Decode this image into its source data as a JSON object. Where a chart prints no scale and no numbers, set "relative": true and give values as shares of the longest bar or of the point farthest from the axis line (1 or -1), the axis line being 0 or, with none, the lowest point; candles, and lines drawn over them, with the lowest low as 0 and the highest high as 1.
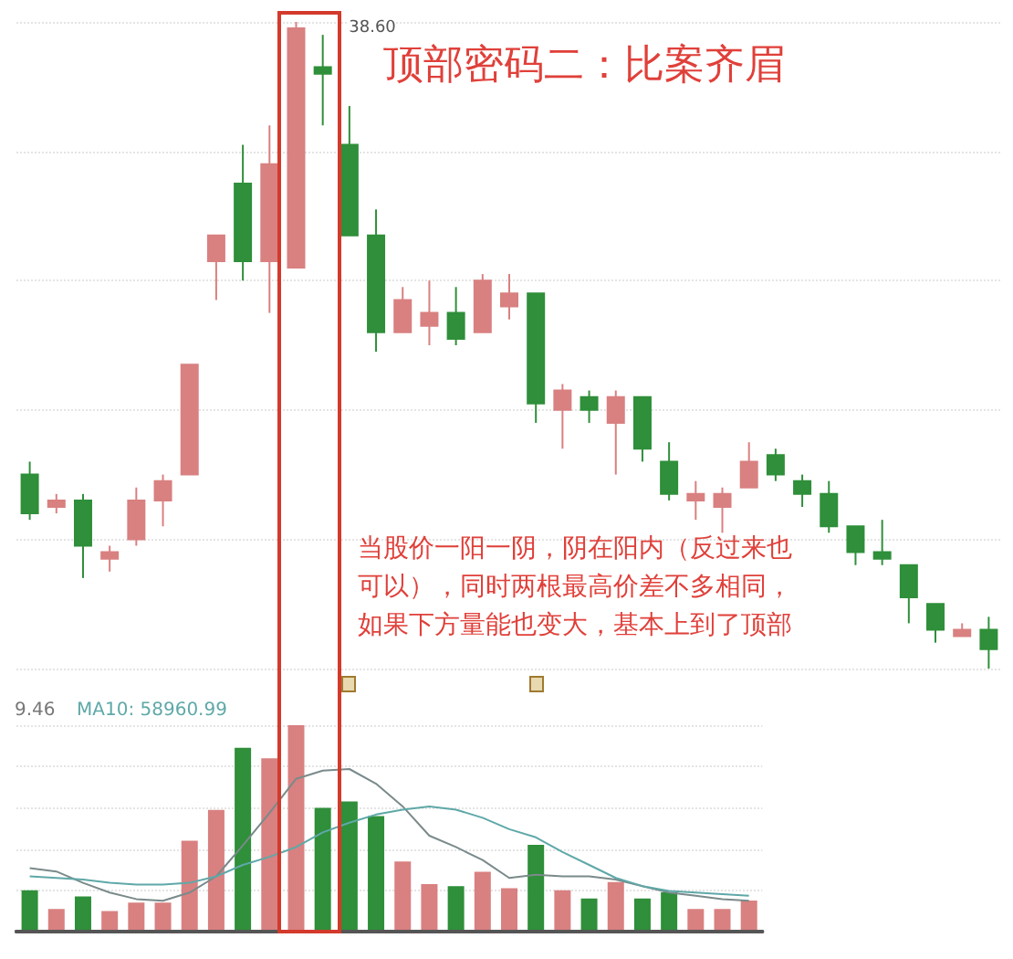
{
  "chart_data": [
    {
      "type": "candlestick",
      "title": "顶部密码二：比案齐眉",
      "relative": true,
      "grid": true,
      "categories": [
        null,
        null,
        null,
        null,
        null,
        null,
        null,
        null,
        null,
        null,
        null,
        null,
        null,
        null,
        null,
        null,
        null,
        null,
        null,
        null,
        null,
        null,
        null,
        null,
        null,
        null,
        null,
        null,
        null,
        null,
        null,
        null,
        null,
        null,
        null,
        null,
        null
      ],
      "ohlc": [
        [
          0.3,
          0.32,
          0.23,
          0.24
        ],
        [
          0.25,
          0.27,
          0.24,
          0.26
        ],
        [
          0.26,
          0.27,
          0.14,
          0.19
        ],
        [
          0.17,
          0.19,
          0.15,
          0.18
        ],
        [
          0.2,
          0.28,
          0.19,
          0.26
        ],
        [
          0.26,
          0.3,
          0.22,
          0.29
        ],
        [
          0.3,
          0.47,
          0.3,
          0.47
        ],
        [
          0.63,
          0.67,
          0.57,
          0.67
        ],
        [
          0.75,
          0.81,
          0.6,
          0.63
        ],
        [
          0.63,
          0.84,
          0.55,
          0.78
        ],
        [
          0.62,
          1,
          0.62,
          0.99
        ],
        [
          0.93,
          0.98,
          0.84,
          0.92
        ],
        [
          0.81,
          0.87,
          0.67,
          0.67
        ],
        [
          0.67,
          0.71,
          0.49,
          0.52
        ],
        [
          0.52,
          0.59,
          0.52,
          0.57
        ],
        [
          0.53,
          0.6,
          0.5,
          0.55
        ],
        [
          0.55,
          0.59,
          0.5,
          0.51
        ],
        [
          0.52,
          0.61,
          0.52,
          0.6
        ],
        [
          0.56,
          0.61,
          0.54,
          0.58
        ],
        [
          0.58,
          0.58,
          0.38,
          0.41
        ],
        [
          0.4,
          0.44,
          0.34,
          0.43
        ],
        [
          0.42,
          0.43,
          0.38,
          0.4
        ],
        [
          0.38,
          0.43,
          0.3,
          0.42
        ],
        [
          0.42,
          0.42,
          0.32,
          0.34
        ],
        [
          0.32,
          0.35,
          0.26,
          0.27
        ],
        [
          0.26,
          0.29,
          0.23,
          0.27
        ],
        [
          0.25,
          0.28,
          0.21,
          0.27
        ],
        [
          0.28,
          0.35,
          0.28,
          0.32
        ],
        [
          0.33,
          0.34,
          0.29,
          0.3
        ],
        [
          0.29,
          0.3,
          0.25,
          0.27
        ],
        [
          0.27,
          0.29,
          0.21,
          0.22
        ],
        [
          0.22,
          0.22,
          0.16,
          0.18
        ],
        [
          0.18,
          0.23,
          0.16,
          0.17
        ],
        [
          0.16,
          0.16,
          0.07,
          0.11
        ],
        [
          0.1,
          0.1,
          0.04,
          0.06
        ],
        [
          0.05,
          0.07,
          0.05,
          0.06
        ],
        [
          0.06,
          0.08,
          0,
          0.03
        ]
      ],
      "colors": [
        "#2f8f3a",
        "#d98080",
        "#2f8f3a",
        "#d98080",
        "#d98080",
        "#d98080",
        "#d98080",
        "#d98080",
        "#2f8f3a",
        "#d98080",
        "#d98080",
        "#2f8f3a",
        "#2f8f3a",
        "#2f8f3a",
        "#d98080",
        "#d98080",
        "#2f8f3a",
        "#d98080",
        "#d98080",
        "#2f8f3a",
        "#d98080",
        "#2f8f3a",
        "#d98080",
        "#2f8f3a",
        "#2f8f3a",
        "#d98080",
        "#d98080",
        "#d98080",
        "#2f8f3a",
        "#2f8f3a",
        "#2f8f3a",
        "#2f8f3a",
        "#2f8f3a",
        "#2f8f3a",
        "#2f8f3a",
        "#d98080",
        "#2f8f3a"
      ],
      "annotations": [
        "38.60",
        "当股价一阳一阴，阴在阳内（反过来也可以），同时两根最高价差不多相同，如果下方量能也变大，基本上到了顶部"
      ]
    },
    {
      "type": "bar",
      "relative": true,
      "grid": true,
      "categories": [
        null,
        null,
        null,
        null,
        null,
        null,
        null,
        null,
        null,
        null,
        null,
        null,
        null,
        null,
        null,
        null,
        null,
        null,
        null,
        null,
        null,
        null,
        null,
        null,
        null,
        null,
        null,
        null
      ],
      "values": [
        0.2,
        0.11,
        0.17,
        0.1,
        0.14,
        0.14,
        0.44,
        0.59,
        0.89,
        0.84,
        1,
        0.6,
        0.63,
        0.56,
        0.34,
        0.23,
        0.22,
        0.29,
        0.21,
        0.42,
        0.2,
        0.16,
        0.24,
        0.16,
        0.19,
        0.11,
        0.11,
        0.15
      ],
      "colors": [
        "#2f8f3a",
        "#d98080",
        "#2f8f3a",
        "#d98080",
        "#d98080",
        "#d98080",
        "#d98080",
        "#d98080",
        "#2f8f3a",
        "#d98080",
        "#d98080",
        "#2f8f3a",
        "#2f8f3a",
        "#2f8f3a",
        "#d98080",
        "#d98080",
        "#2f8f3a",
        "#d98080",
        "#d98080",
        "#2f8f3a",
        "#d98080",
        "#2f8f3a",
        "#d98080",
        "#2f8f3a",
        "#2f8f3a",
        "#d98080",
        "#d98080",
        "#d98080"
      ],
      "annotations": [
        "9.46",
        "MA10: 58960.99"
      ]
    },
    {
      "type": "line",
      "relative": true,
      "marker": "none",
      "categories": [
        null,
        null,
        null,
        null,
        null,
        null,
        null,
        null,
        null,
        null,
        null,
        null,
        null,
        null,
        null,
        null,
        null,
        null,
        null,
        null,
        null,
        null,
        null,
        null,
        null,
        null,
        null,
        null
      ],
      "series": [
        {
          "color": "#7a8a8a",
          "values": [
            0.39,
            0.37,
            0.3,
            0.24,
            0.2,
            0.19,
            0.24,
            0.34,
            0.53,
            0.73,
            0.94,
            0.99,
            1,
            0.91,
            0.77,
            0.59,
            0.52,
            0.44,
            0.33,
            0.35,
            0.34,
            0.34,
            0.32,
            0.28,
            0.24,
            0.22,
            0.2,
            0.19
          ]
        },
        {
          "color": "#5fa8a8",
          "values": [
            0.34,
            0.33,
            0.32,
            0.3,
            0.29,
            0.29,
            0.3,
            0.34,
            0.41,
            0.46,
            0.52,
            0.61,
            0.67,
            0.72,
            0.75,
            0.77,
            0.75,
            0.7,
            0.63,
            0.58,
            0.49,
            0.41,
            0.33,
            0.28,
            0.25,
            0.24,
            0.23,
            0.22
          ]
        }
      ]
    }
  ]
}
